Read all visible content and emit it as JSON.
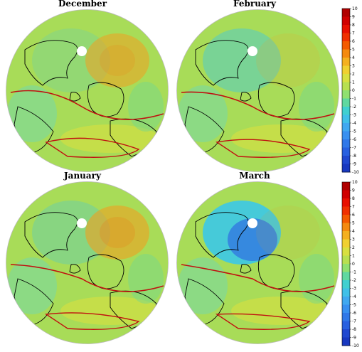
{
  "panels": [
    {
      "title": "December",
      "cold_anomaly": 0.2,
      "warm_anomaly": 0.55
    },
    {
      "title": "February",
      "cold_anomaly": 0.45,
      "warm_anomaly": 0.15
    },
    {
      "title": "January",
      "cold_anomaly": 0.3,
      "warm_anomaly": 0.6
    },
    {
      "title": "March",
      "cold_anomaly": 0.95,
      "warm_anomaly": 0.1
    }
  ],
  "colorbar": {
    "ticks": [
      "10",
      "9",
      "8",
      "7",
      "6",
      "5",
      "4",
      "3",
      "2",
      "1",
      "0",
      "-1",
      "-2",
      "-3",
      "-4",
      "-5",
      "-6",
      "-7",
      "-8",
      "-9",
      "-10"
    ],
    "colors": [
      "#b00000",
      "#d00000",
      "#e81000",
      "#f03000",
      "#f45a00",
      "#f48a10",
      "#f4b020",
      "#f0d030",
      "#d8e040",
      "#b8e050",
      "#90e070",
      "#60d8a0",
      "#40d0d0",
      "#40c0e8",
      "#40a8f0",
      "#3890f0",
      "#3078e8",
      "#2860e0",
      "#2048d0",
      "#1838c0"
    ]
  },
  "colors": {
    "base_land": "#a8dc58",
    "coast": "#000000",
    "zero_contour": "#c01010"
  }
}
